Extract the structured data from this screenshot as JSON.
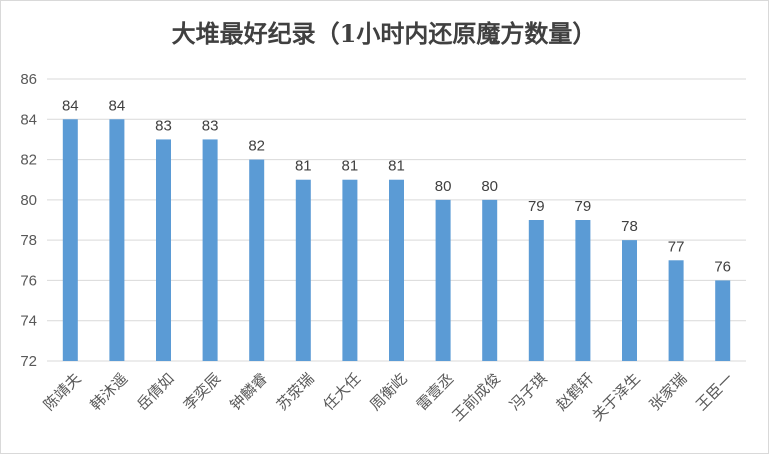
{
  "chart_data": {
    "type": "bar",
    "title": "大堆最好纪录（1小时内还原魔方数量）",
    "xlabel": "",
    "ylabel": "",
    "ylim": [
      72,
      86
    ],
    "yticks": [
      72,
      74,
      76,
      78,
      80,
      82,
      84,
      86
    ],
    "categories": [
      "陈靖夫",
      "韩沐遥",
      "岳倩如",
      "李奕辰",
      "钟麟睿",
      "苏荥瑞",
      "任大任",
      "周衡屹",
      "雷壹丞",
      "王前成俊",
      "冯子琪",
      "赵鹤轩",
      "关于泽生",
      "张家瑞",
      "王臣一"
    ],
    "values": [
      84,
      84,
      83,
      83,
      82,
      81,
      81,
      81,
      80,
      80,
      79,
      79,
      78,
      77,
      76
    ],
    "data_labels": true,
    "grid": true,
    "legend": "none",
    "colors": {
      "bar": "#5b9bd5",
      "grid": "#d9d9d9",
      "text": "#595959",
      "title": "#404040"
    }
  }
}
